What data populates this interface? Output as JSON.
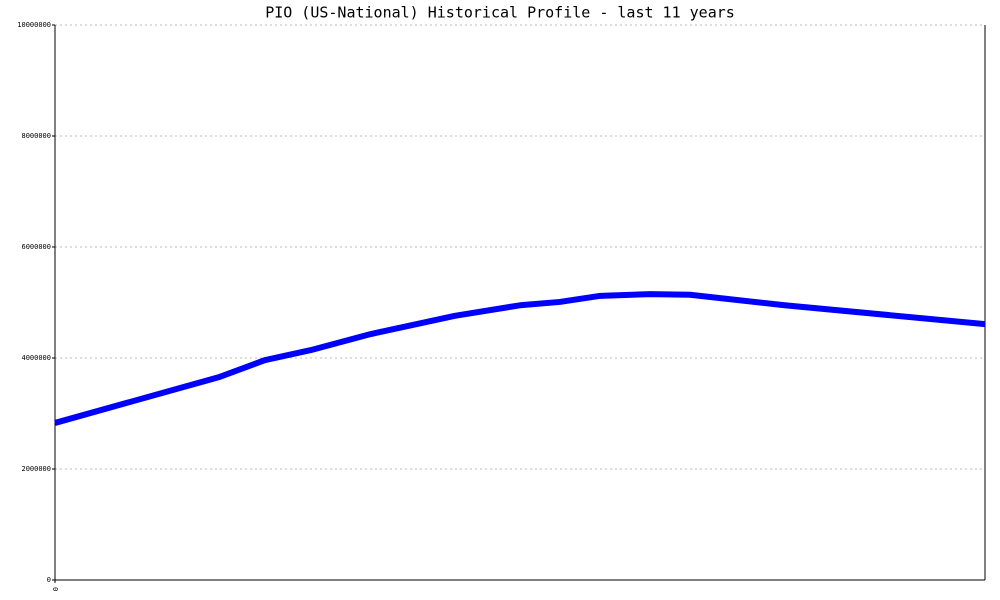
{
  "chart_data": {
    "type": "line",
    "title": "PIO (US-National) Historical Profile - last 11 years",
    "x": [
      0,
      1.95,
      2.48,
      3.02,
      3.73,
      4.73,
      5.5,
      5.97,
      6.45,
      7.04,
      7.51,
      8.63,
      11
    ],
    "series": [
      {
        "color": "#0000ff",
        "values": [
          2830000,
          3660000,
          3960000,
          4140000,
          4430000,
          4760000,
          4950000,
          5010000,
          5120000,
          5150000,
          5140000,
          4950000,
          4610000
        ]
      }
    ],
    "xlim": [
      0,
      11
    ],
    "xticks": [
      0
    ],
    "ylim": [
      0,
      10000000
    ],
    "yticks": [
      0,
      2000000,
      4000000,
      6000000,
      8000000,
      10000000
    ],
    "grid": true
  }
}
